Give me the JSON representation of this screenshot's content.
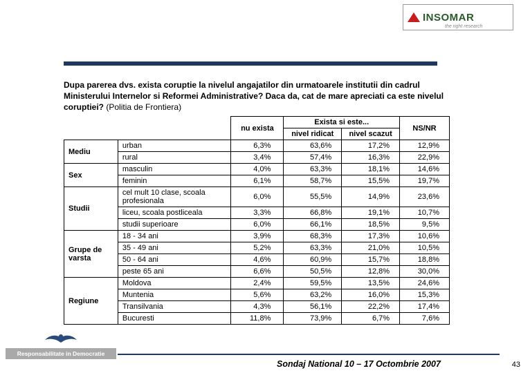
{
  "logo_top": {
    "text": "INSOMAR",
    "subtitle": "the right research"
  },
  "header_rule_color": "#1f3a5f",
  "question": {
    "bold": "Dupa parerea dvs. exista coruptie la nivelul  angajatilor din urmatoarele institutii din cadrul Ministerului Internelor si Reformei Administrative? Daca da, cat de mare apreciati ca este nivelul coruptiei?",
    "paren": " (Politia de Frontiera)"
  },
  "table": {
    "header_nu_exista": "nu exista",
    "header_exista": "Exista si este...",
    "header_ridicat": "nivel ridicat",
    "header_scazut": "nivel scazut",
    "header_nsnr": "NS/NR",
    "groups": [
      {
        "label": "Mediu",
        "rows": [
          {
            "cat": "urban",
            "c1": "6,3%",
            "c2": "63,6%",
            "c3": "17,2%",
            "c4": "12,9%"
          },
          {
            "cat": "rural",
            "c1": "3,4%",
            "c2": "57,4%",
            "c3": "16,3%",
            "c4": "22,9%"
          }
        ]
      },
      {
        "label": "Sex",
        "rows": [
          {
            "cat": "masculin",
            "c1": "4,0%",
            "c2": "63,3%",
            "c3": "18,1%",
            "c4": "14,6%"
          },
          {
            "cat": "feminin",
            "c1": "6,1%",
            "c2": "58,7%",
            "c3": "15,5%",
            "c4": "19,7%"
          }
        ]
      },
      {
        "label": "Studii",
        "rows": [
          {
            "cat": "cel mult 10 clase, scoala profesionala",
            "c1": "6,0%",
            "c2": "55,5%",
            "c3": "14,9%",
            "c4": "23,6%"
          },
          {
            "cat": "liceu, scoala postliceala",
            "c1": "3,3%",
            "c2": "66,8%",
            "c3": "19,1%",
            "c4": "10,7%"
          },
          {
            "cat": "studii superioare",
            "c1": "6,0%",
            "c2": "66,1%",
            "c3": "18,5%",
            "c4": "9,5%"
          }
        ]
      },
      {
        "label": "Grupe de varsta",
        "rows": [
          {
            "cat": "18 - 34 ani",
            "c1": "3,9%",
            "c2": "68,3%",
            "c3": "17,3%",
            "c4": "10,6%"
          },
          {
            "cat": "35 - 49 ani",
            "c1": "5,2%",
            "c2": "63,3%",
            "c3": "21,0%",
            "c4": "10,5%"
          },
          {
            "cat": "50 - 64 ani",
            "c1": "4,6%",
            "c2": "60,9%",
            "c3": "15,7%",
            "c4": "18,8%"
          },
          {
            "cat": "peste 65 ani",
            "c1": "6,6%",
            "c2": "50,5%",
            "c3": "12,8%",
            "c4": "30,0%"
          }
        ]
      },
      {
        "label": "Regiune",
        "rows": [
          {
            "cat": "Moldova",
            "c1": "2,4%",
            "c2": "59,5%",
            "c3": "13,5%",
            "c4": "24,6%"
          },
          {
            "cat": "Muntenia",
            "c1": "5,6%",
            "c2": "63,2%",
            "c3": "16,0%",
            "c4": "15,3%"
          },
          {
            "cat": "Transilvania",
            "c1": "4,3%",
            "c2": "56,1%",
            "c3": "22,2%",
            "c4": "17,4%"
          },
          {
            "cat": "Bucuresti",
            "c1": "11,8%",
            "c2": "73,9%",
            "c3": "6,7%",
            "c4": "7,6%"
          }
        ]
      }
    ]
  },
  "footer_logo_band": "Responsabilitate in Democratie",
  "footer_text": "Sondaj National 10 – 17 Octombrie  2007",
  "page_number": "43"
}
